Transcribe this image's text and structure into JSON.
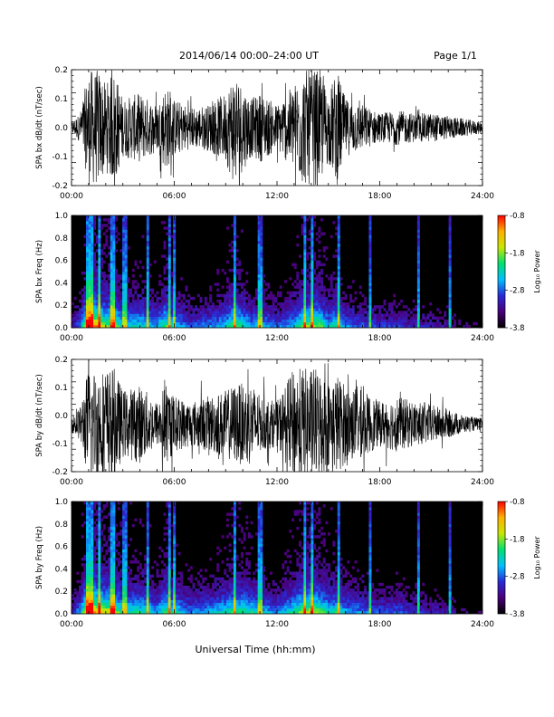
{
  "header": {
    "title": "2014/06/14  00:00–24:00 UT",
    "page": "Page 1/1"
  },
  "footer": {
    "xlabel": "Universal Time (hh:mm)"
  },
  "time_ticks": [
    "00:00",
    "06:00",
    "12:00",
    "18:00",
    "24:00"
  ],
  "colorbar": {
    "label": "Log₁₀ Power",
    "tick_labels": [
      "-0.8",
      "-1.8",
      "-2.8",
      "-3.8"
    ],
    "range": [
      -3.8,
      -0.8
    ],
    "colors": [
      "#000000",
      "#4b007a",
      "#2a2ad6",
      "#00bfff",
      "#00e070",
      "#c8e600",
      "#ffb000",
      "#ff0000"
    ]
  },
  "chart_data": [
    {
      "type": "line",
      "ylabel": "SPA bx dB/dt (nT/sec)",
      "x_range_hours": [
        0,
        24
      ],
      "ylim": [
        -0.2,
        0.2
      ],
      "y_tick_labels": [
        "0.2",
        "0.1",
        "0.0",
        "-0.1",
        "-0.2"
      ],
      "envelope_x_hours": [
        0,
        0.5,
        1.0,
        1.2,
        1.6,
        2.0,
        2.5,
        3.0,
        4.0,
        5.0,
        5.5,
        6.0,
        7.0,
        8.0,
        9.0,
        9.5,
        10.5,
        11.0,
        12.0,
        13.0,
        13.5,
        14.0,
        14.5,
        15.0,
        15.5,
        16.0,
        17.0,
        18.0,
        19.0,
        20.0,
        21.0,
        22.0,
        23.0,
        24.0
      ],
      "envelope_amplitude": [
        0.02,
        0.05,
        0.2,
        0.2,
        0.2,
        0.15,
        0.2,
        0.1,
        0.12,
        0.08,
        0.15,
        0.1,
        0.07,
        0.08,
        0.12,
        0.2,
        0.1,
        0.12,
        0.08,
        0.15,
        0.2,
        0.2,
        0.2,
        0.12,
        0.2,
        0.1,
        0.08,
        0.05,
        0.06,
        0.05,
        0.05,
        0.04,
        0.03,
        0.02
      ],
      "offset": 0.0
    },
    {
      "type": "heatmap",
      "ylabel": "SPA bx Freq (Hz)",
      "x_range_hours": [
        0,
        24
      ],
      "ylim": [
        0.0,
        1.0
      ],
      "y_tick_labels": [
        "1.0",
        "0.8",
        "0.6",
        "0.4",
        "0.2",
        "0.0"
      ],
      "z_range": [
        -3.8,
        -0.8
      ],
      "activity_x_hours": [
        0,
        0.5,
        1.0,
        1.2,
        1.6,
        2.0,
        2.5,
        3.0,
        4.0,
        5.0,
        5.5,
        6.0,
        7.0,
        8.0,
        9.0,
        9.5,
        10.5,
        11.0,
        12.0,
        13.0,
        13.5,
        14.0,
        14.5,
        15.0,
        15.5,
        16.0,
        17.0,
        18.0,
        19.0,
        20.0,
        21.0,
        22.0,
        23.0,
        24.0
      ],
      "activity_level": [
        0.2,
        0.4,
        1.0,
        1.0,
        0.9,
        0.7,
        0.8,
        0.5,
        0.55,
        0.45,
        0.7,
        0.5,
        0.35,
        0.4,
        0.5,
        0.7,
        0.45,
        0.5,
        0.35,
        0.5,
        0.7,
        0.75,
        0.7,
        0.5,
        0.6,
        0.4,
        0.35,
        0.3,
        0.3,
        0.25,
        0.25,
        0.2,
        0.15,
        0.1
      ]
    },
    {
      "type": "line",
      "ylabel": "SPA by dB/dt (nT/sec)",
      "x_range_hours": [
        0,
        24
      ],
      "ylim": [
        -0.2,
        0.2
      ],
      "y_tick_labels": [
        "0.2",
        "0.1",
        "0.0",
        "-0.1",
        "-0.2"
      ],
      "envelope_x_hours": [
        0,
        0.5,
        0.8,
        1.0,
        1.5,
        2.0,
        2.5,
        3.0,
        4.0,
        5.0,
        5.5,
        6.0,
        7.0,
        8.0,
        9.0,
        9.5,
        10.5,
        11.0,
        12.0,
        13.0,
        13.5,
        14.0,
        14.5,
        15.0,
        15.5,
        16.0,
        17.0,
        18.0,
        19.0,
        20.0,
        21.0,
        22.0,
        23.0,
        24.0
      ],
      "envelope_amplitude": [
        0.03,
        0.06,
        0.15,
        0.2,
        0.2,
        0.2,
        0.2,
        0.12,
        0.14,
        0.08,
        0.15,
        0.1,
        0.08,
        0.1,
        0.12,
        0.14,
        0.15,
        0.1,
        0.08,
        0.2,
        0.2,
        0.2,
        0.2,
        0.15,
        0.18,
        0.14,
        0.12,
        0.08,
        0.1,
        0.08,
        0.07,
        0.05,
        0.03,
        0.02
      ],
      "offset": -0.03
    },
    {
      "type": "heatmap",
      "ylabel": "SPA by Freq (Hz)",
      "x_range_hours": [
        0,
        24
      ],
      "ylim": [
        0.0,
        1.0
      ],
      "y_tick_labels": [
        "1.0",
        "0.8",
        "0.6",
        "0.4",
        "0.2",
        "0.0"
      ],
      "z_range": [
        -3.8,
        -0.8
      ],
      "activity_x_hours": [
        0,
        0.5,
        0.8,
        1.0,
        1.5,
        2.0,
        2.5,
        3.0,
        4.0,
        5.0,
        5.5,
        6.0,
        7.0,
        8.0,
        9.0,
        9.5,
        10.5,
        11.0,
        12.0,
        13.0,
        13.5,
        14.0,
        14.5,
        15.0,
        15.5,
        16.0,
        17.0,
        18.0,
        19.0,
        20.0,
        21.0,
        22.0,
        23.0,
        24.0
      ],
      "activity_level": [
        0.25,
        0.45,
        0.8,
        1.0,
        0.9,
        0.8,
        0.8,
        0.55,
        0.6,
        0.45,
        0.7,
        0.55,
        0.4,
        0.45,
        0.55,
        0.65,
        0.6,
        0.5,
        0.4,
        0.6,
        0.75,
        0.8,
        0.7,
        0.55,
        0.6,
        0.45,
        0.4,
        0.35,
        0.35,
        0.3,
        0.25,
        0.2,
        0.15,
        0.1
      ]
    }
  ]
}
